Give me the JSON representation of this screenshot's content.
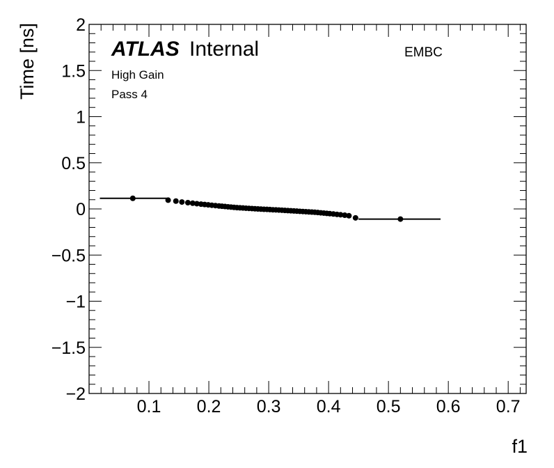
{
  "header": {
    "atlas_label": "ATLAS",
    "internal_label": "Internal",
    "region_label": "EMBC",
    "gain_label": "High Gain",
    "pass_label": "Pass 4"
  },
  "chart_data": {
    "type": "scatter",
    "title": "",
    "xlabel": "f1",
    "ylabel": "Time [ns]",
    "xlim": [
      0.0,
      0.73
    ],
    "ylim": [
      -2,
      2
    ],
    "x_ticks": [
      0.1,
      0.2,
      0.3,
      0.4,
      0.5,
      0.6,
      0.7
    ],
    "x_tick_labels": [
      "0.1",
      "0.2",
      "0.3",
      "0.4",
      "0.5",
      "0.6",
      "0.7"
    ],
    "y_ticks": [
      -2,
      -1.5,
      -1,
      -0.5,
      0,
      0.5,
      1,
      1.5,
      2
    ],
    "y_tick_labels": [
      "−2",
      "−1.5",
      "−1",
      "−0.5",
      "0",
      "0.5",
      "1",
      "1.5",
      "2"
    ],
    "grid": false,
    "series": [
      {
        "x": [
          0.073,
          0.132,
          0.145,
          0.155,
          0.165,
          0.173,
          0.18,
          0.187,
          0.193,
          0.199,
          0.205,
          0.211,
          0.217,
          0.222,
          0.227,
          0.232,
          0.237,
          0.242,
          0.247,
          0.252,
          0.257,
          0.262,
          0.267,
          0.272,
          0.277,
          0.282,
          0.287,
          0.292,
          0.297,
          0.302,
          0.307,
          0.312,
          0.317,
          0.322,
          0.327,
          0.332,
          0.337,
          0.342,
          0.347,
          0.352,
          0.357,
          0.362,
          0.367,
          0.372,
          0.377,
          0.382,
          0.387,
          0.392,
          0.397,
          0.402,
          0.408,
          0.414,
          0.42,
          0.427,
          0.434,
          0.445,
          0.52
        ],
        "y": [
          0.115,
          0.095,
          0.085,
          0.075,
          0.068,
          0.062,
          0.057,
          0.052,
          0.048,
          0.044,
          0.04,
          0.036,
          0.032,
          0.029,
          0.026,
          0.023,
          0.02,
          0.017,
          0.014,
          0.012,
          0.01,
          0.008,
          0.006,
          0.004,
          0.002,
          0.0,
          -0.002,
          -0.004,
          -0.005,
          -0.007,
          -0.009,
          -0.01,
          -0.012,
          -0.014,
          -0.016,
          -0.018,
          -0.02,
          -0.022,
          -0.024,
          -0.026,
          -0.028,
          -0.03,
          -0.032,
          -0.034,
          -0.036,
          -0.039,
          -0.042,
          -0.045,
          -0.048,
          -0.051,
          -0.055,
          -0.059,
          -0.063,
          -0.068,
          -0.074,
          -0.097,
          -0.11
        ],
        "xerr_left": [
          0.055,
          0,
          0,
          0,
          0,
          0,
          0,
          0,
          0,
          0,
          0,
          0,
          0,
          0,
          0,
          0,
          0,
          0,
          0,
          0,
          0,
          0,
          0,
          0,
          0,
          0,
          0,
          0,
          0,
          0,
          0,
          0,
          0,
          0,
          0,
          0,
          0,
          0,
          0,
          0,
          0,
          0,
          0,
          0,
          0,
          0,
          0,
          0,
          0,
          0,
          0,
          0,
          0,
          0,
          0,
          0,
          0.07
        ],
        "xerr_right": [
          0.057,
          0,
          0,
          0,
          0,
          0,
          0,
          0,
          0,
          0,
          0,
          0,
          0,
          0,
          0,
          0,
          0,
          0,
          0,
          0,
          0,
          0,
          0,
          0,
          0,
          0,
          0,
          0,
          0,
          0,
          0,
          0,
          0,
          0,
          0,
          0,
          0,
          0,
          0,
          0,
          0,
          0,
          0,
          0,
          0,
          0,
          0,
          0,
          0,
          0,
          0,
          0,
          0,
          0,
          0,
          0,
          0.067
        ]
      }
    ]
  }
}
